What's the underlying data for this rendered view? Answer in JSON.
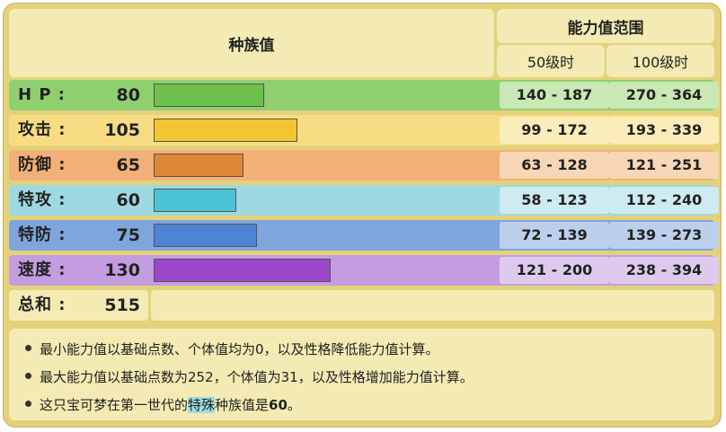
{
  "header": {
    "base_stats": "种族值",
    "stat_range": "能力值范围",
    "lv50": "50级时",
    "lv100": "100级时"
  },
  "stats": [
    {
      "label": "H P :",
      "value": "80",
      "fraction": 0.4,
      "lv50": "140 - 187",
      "lv100": "270 - 364"
    },
    {
      "label": "攻击 :",
      "value": "105",
      "fraction": 0.525,
      "lv50": "99 - 172",
      "lv100": "193 - 339"
    },
    {
      "label": "防御 :",
      "value": "65",
      "fraction": 0.325,
      "lv50": "63 - 128",
      "lv100": "121 - 251"
    },
    {
      "label": "特攻 :",
      "value": "60",
      "fraction": 0.3,
      "lv50": "58 - 123",
      "lv100": "112 - 240"
    },
    {
      "label": "特防 :",
      "value": "75",
      "fraction": 0.375,
      "lv50": "72 - 139",
      "lv100": "139 - 273"
    },
    {
      "label": "速度 :",
      "value": "130",
      "fraction": 0.65,
      "lv50": "121 - 200",
      "lv100": "238 - 394"
    }
  ],
  "total": {
    "label": "总和 :",
    "value": "515"
  },
  "notes": {
    "n1": "最小能力值以基础点数、个体值均为0，以及性格降低能力值计算。",
    "n2": "最大能力值以基础点数为252，个体值为31，以及性格增加能力值计算。",
    "n3_pre": "这只宝可梦在第一世代的",
    "n3_hl": "特殊",
    "n3_mid": "种族值是",
    "n3_bold": "60",
    "n3_post": "。"
  },
  "colors": {
    "hp_row": "#8fcf6f",
    "hp_bar": "#6ec14a",
    "hp_range": "#c9e8b3",
    "atk_row": "#f7dc83",
    "atk_bar": "#f2c531",
    "atk_range": "#fbedb9",
    "def_row": "#f2b078",
    "def_bar": "#de8736",
    "def_range": "#f8d7b6",
    "spa_row": "#9ed9e2",
    "spa_bar": "#4bc4d6",
    "spa_range": "#cdebf0",
    "spd_row": "#7fa6dc",
    "spd_bar": "#4f84d4",
    "spd_range": "#bcd0ec",
    "spe_row": "#c39ddf",
    "spe_bar": "#9a48c9",
    "spe_range": "#dfcaef",
    "total_row": "#f3ebb3"
  }
}
